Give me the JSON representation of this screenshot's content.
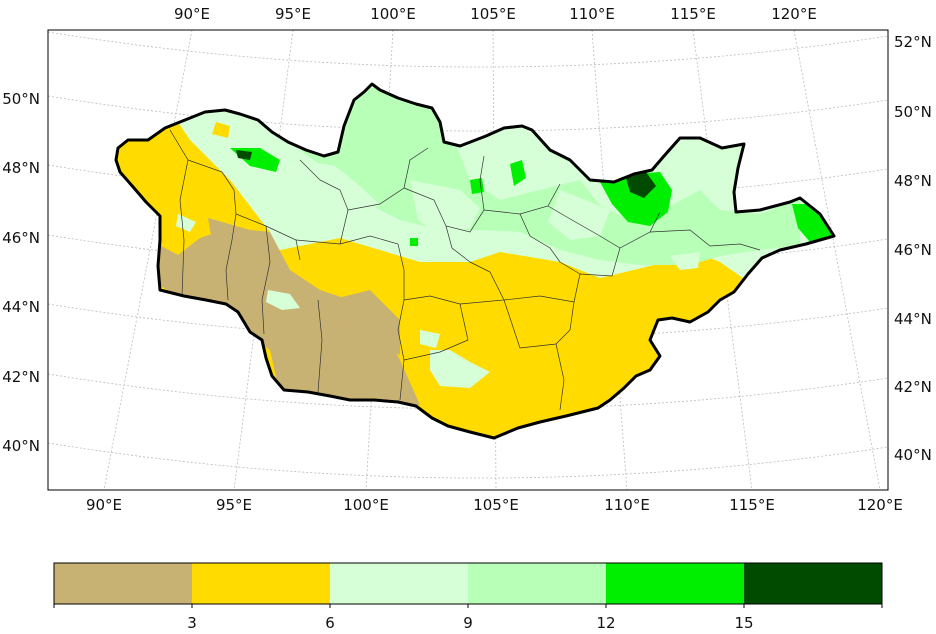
{
  "map": {
    "top_lon_labels": [
      "90°E",
      "95°E",
      "100°E",
      "105°E",
      "110°E",
      "115°E",
      "120°E"
    ],
    "bottom_lon_labels": [
      "90°E",
      "95°E",
      "100°E",
      "105°E",
      "110°E",
      "115°E",
      "120°E"
    ],
    "left_lat_labels": [
      "50°N",
      "48°N",
      "46°N",
      "44°N",
      "42°N",
      "40°N"
    ],
    "right_lat_labels": [
      "52°N",
      "50°N",
      "48°N",
      "46°N",
      "44°N",
      "42°N",
      "40°N"
    ]
  },
  "colorbar": {
    "tick_labels": [
      "3",
      "6",
      "9",
      "12",
      "15"
    ],
    "colors": [
      "#c8b273",
      "#ffdb00",
      "#d7ffd7",
      "#b8ffb8",
      "#00ee00",
      "#004b00"
    ]
  },
  "palette": {
    "border": "#000000",
    "province_lines": "#333333",
    "graticule": "#bbbbbb"
  }
}
